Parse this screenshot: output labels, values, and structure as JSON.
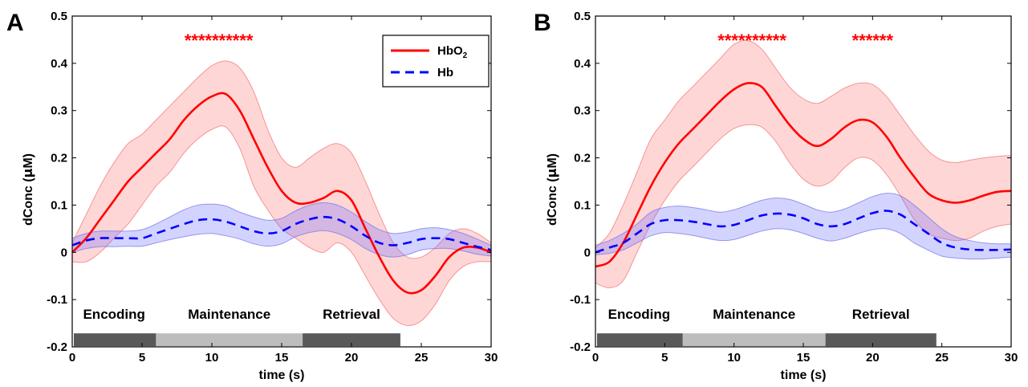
{
  "colors": {
    "hbo2": "#ff0000",
    "hbo2_band": "rgba(255,120,120,0.30)",
    "hbo2_band_edge": "rgba(240,120,120,0.75)",
    "hb": "#0000ff",
    "hb_band": "rgba(110,110,255,0.30)",
    "hb_band_edge": "rgba(120,120,230,0.75)",
    "phase_dark": "#595959",
    "phase_light": "#bdbdbd",
    "stars": "#ff0000"
  },
  "chart_data": [
    {
      "type": "line",
      "panel_label": "A",
      "xlabel": "time (s)",
      "ylabel_prefix": "dConc (",
      "ylabel_mu": "μ",
      "ylabel_suffix": "M)",
      "xlim": [
        0,
        30
      ],
      "ylim": [
        -0.2,
        0.5
      ],
      "xticks": [
        0,
        5,
        10,
        15,
        20,
        25,
        30
      ],
      "yticks": [
        -0.2,
        -0.1,
        0,
        0.1,
        0.2,
        0.3,
        0.4,
        0.5
      ],
      "ytick_labels": [
        "-0.2",
        "-0.1",
        "0",
        "0.1",
        "0.2",
        "0.3",
        "0.4",
        "0.5"
      ],
      "grid": false,
      "legend": {
        "placement": "top-right",
        "entries": [
          {
            "label": "HbO",
            "subscript": "2",
            "style": "solid",
            "series": "HbO2"
          },
          {
            "label": "Hb",
            "subscript": "",
            "style": "dashed",
            "series": "Hb"
          }
        ]
      },
      "significance": [
        {
          "text": "**********",
          "x_center": 10.5
        }
      ],
      "phases": [
        {
          "label": "Encoding",
          "x_start": 0,
          "x_end": 6,
          "shade": "dark"
        },
        {
          "label": "Maintenance",
          "x_start": 6,
          "x_end": 16.5,
          "shade": "light"
        },
        {
          "label": "Retrieval",
          "x_start": 16.5,
          "x_end": 23.5,
          "shade": "dark"
        }
      ],
      "phase_bar_y": -0.185,
      "phase_label_y": -0.13,
      "series": [
        {
          "name": "HbO2",
          "x": [
            0,
            1,
            2,
            3,
            4,
            5,
            6,
            7,
            8,
            9,
            10,
            11,
            12,
            13,
            14,
            15,
            16,
            17,
            18,
            19,
            20,
            21,
            22,
            23,
            24,
            25,
            26,
            27,
            28,
            29,
            30
          ],
          "mean": [
            0.0,
            0.03,
            0.07,
            0.11,
            0.15,
            0.18,
            0.21,
            0.24,
            0.28,
            0.31,
            0.33,
            0.335,
            0.3,
            0.24,
            0.18,
            0.13,
            0.105,
            0.105,
            0.115,
            0.13,
            0.11,
            0.05,
            -0.01,
            -0.06,
            -0.085,
            -0.08,
            -0.05,
            -0.01,
            0.01,
            0.01,
            0.0
          ],
          "upper": [
            0.02,
            0.08,
            0.14,
            0.19,
            0.23,
            0.25,
            0.28,
            0.31,
            0.34,
            0.37,
            0.395,
            0.405,
            0.39,
            0.34,
            0.26,
            0.2,
            0.18,
            0.2,
            0.22,
            0.23,
            0.21,
            0.15,
            0.08,
            0.02,
            -0.01,
            -0.01,
            0.01,
            0.04,
            0.05,
            0.04,
            0.02
          ],
          "lower": [
            -0.02,
            -0.02,
            0.0,
            0.03,
            0.06,
            0.1,
            0.14,
            0.17,
            0.21,
            0.24,
            0.26,
            0.265,
            0.22,
            0.14,
            0.09,
            0.05,
            0.03,
            0.01,
            0.0,
            0.02,
            0.0,
            -0.05,
            -0.1,
            -0.14,
            -0.155,
            -0.145,
            -0.11,
            -0.06,
            -0.03,
            -0.02,
            -0.02
          ]
        },
        {
          "name": "Hb",
          "x": [
            0,
            1,
            2,
            3,
            4,
            5,
            6,
            7,
            8,
            9,
            10,
            11,
            12,
            13,
            14,
            15,
            16,
            17,
            18,
            19,
            20,
            21,
            22,
            23,
            24,
            25,
            26,
            27,
            28,
            29,
            30
          ],
          "mean": [
            0.015,
            0.025,
            0.03,
            0.03,
            0.03,
            0.03,
            0.04,
            0.05,
            0.06,
            0.068,
            0.07,
            0.065,
            0.055,
            0.045,
            0.04,
            0.045,
            0.06,
            0.07,
            0.075,
            0.07,
            0.055,
            0.035,
            0.02,
            0.015,
            0.02,
            0.028,
            0.03,
            0.028,
            0.02,
            0.012,
            0.005
          ],
          "upper": [
            0.03,
            0.04,
            0.045,
            0.045,
            0.045,
            0.048,
            0.06,
            0.075,
            0.09,
            0.1,
            0.102,
            0.098,
            0.085,
            0.075,
            0.068,
            0.072,
            0.088,
            0.1,
            0.105,
            0.1,
            0.085,
            0.065,
            0.048,
            0.04,
            0.043,
            0.05,
            0.052,
            0.048,
            0.04,
            0.028,
            0.015
          ],
          "lower": [
            0.0,
            0.008,
            0.012,
            0.012,
            0.013,
            0.013,
            0.02,
            0.027,
            0.033,
            0.038,
            0.04,
            0.035,
            0.028,
            0.018,
            0.013,
            0.018,
            0.033,
            0.042,
            0.046,
            0.04,
            0.027,
            0.008,
            -0.005,
            -0.01,
            -0.005,
            0.005,
            0.008,
            0.008,
            0.003,
            -0.004,
            -0.008
          ]
        }
      ]
    },
    {
      "type": "line",
      "panel_label": "B",
      "xlabel": "time (s)",
      "ylabel_prefix": "dConc (",
      "ylabel_mu": "μ",
      "ylabel_suffix": "M)",
      "xlim": [
        0,
        30
      ],
      "ylim": [
        -0.2,
        0.5
      ],
      "xticks": [
        0,
        5,
        10,
        15,
        20,
        25,
        30
      ],
      "yticks": [
        -0.2,
        -0.1,
        0,
        0.1,
        0.2,
        0.3,
        0.4,
        0.5
      ],
      "ytick_labels": [
        "-0.2",
        "-0.1",
        "0",
        "0.1",
        "0.2",
        "0.3",
        "0.4",
        "0.5"
      ],
      "grid": false,
      "significance": [
        {
          "text": "**********",
          "x_center": 11.3
        },
        {
          "text": "******",
          "x_center": 20.0
        }
      ],
      "phases": [
        {
          "label": "Encoding",
          "x_start": 0,
          "x_end": 6.3,
          "shade": "dark"
        },
        {
          "label": "Maintenance",
          "x_start": 6.3,
          "x_end": 16.6,
          "shade": "light"
        },
        {
          "label": "Retrieval",
          "x_start": 16.6,
          "x_end": 24.6,
          "shade": "dark"
        }
      ],
      "phase_bar_y": -0.185,
      "phase_label_y": -0.13,
      "series": [
        {
          "name": "HbO2",
          "x": [
            0,
            1,
            2,
            3,
            4,
            5,
            6,
            7,
            8,
            9,
            10,
            11,
            12,
            13,
            14,
            15,
            16,
            17,
            18,
            19,
            20,
            21,
            22,
            23,
            24,
            25,
            26,
            27,
            28,
            29,
            30
          ],
          "mean": [
            -0.03,
            -0.02,
            0.02,
            0.08,
            0.14,
            0.19,
            0.23,
            0.26,
            0.29,
            0.32,
            0.345,
            0.358,
            0.35,
            0.31,
            0.27,
            0.24,
            0.225,
            0.24,
            0.265,
            0.28,
            0.275,
            0.245,
            0.2,
            0.16,
            0.125,
            0.11,
            0.105,
            0.11,
            0.12,
            0.128,
            0.13
          ],
          "upper": [
            0.01,
            0.04,
            0.1,
            0.17,
            0.24,
            0.28,
            0.32,
            0.35,
            0.38,
            0.41,
            0.44,
            0.448,
            0.43,
            0.39,
            0.35,
            0.325,
            0.315,
            0.33,
            0.348,
            0.358,
            0.355,
            0.33,
            0.29,
            0.25,
            0.215,
            0.195,
            0.19,
            0.195,
            0.2,
            0.203,
            0.205
          ],
          "lower": [
            -0.065,
            -0.075,
            -0.06,
            0.0,
            0.06,
            0.11,
            0.15,
            0.18,
            0.21,
            0.24,
            0.262,
            0.27,
            0.265,
            0.235,
            0.19,
            0.155,
            0.14,
            0.15,
            0.18,
            0.2,
            0.195,
            0.165,
            0.12,
            0.07,
            0.04,
            0.03,
            0.025,
            0.03,
            0.045,
            0.055,
            0.06
          ]
        },
        {
          "name": "Hb",
          "x": [
            0,
            1,
            2,
            3,
            4,
            5,
            6,
            7,
            8,
            9,
            10,
            11,
            12,
            13,
            14,
            15,
            16,
            17,
            18,
            19,
            20,
            21,
            22,
            23,
            24,
            25,
            26,
            27,
            28,
            29,
            30
          ],
          "mean": [
            0.0,
            0.01,
            0.02,
            0.04,
            0.06,
            0.068,
            0.068,
            0.065,
            0.06,
            0.055,
            0.058,
            0.068,
            0.078,
            0.082,
            0.08,
            0.072,
            0.06,
            0.055,
            0.06,
            0.072,
            0.083,
            0.088,
            0.08,
            0.06,
            0.04,
            0.02,
            0.01,
            0.006,
            0.005,
            0.005,
            0.006
          ],
          "upper": [
            0.015,
            0.025,
            0.04,
            0.06,
            0.085,
            0.095,
            0.098,
            0.095,
            0.09,
            0.085,
            0.09,
            0.1,
            0.11,
            0.115,
            0.112,
            0.102,
            0.09,
            0.085,
            0.092,
            0.105,
            0.118,
            0.125,
            0.12,
            0.1,
            0.075,
            0.05,
            0.033,
            0.025,
            0.02,
            0.018,
            0.018
          ],
          "lower": [
            -0.005,
            -0.002,
            0.005,
            0.02,
            0.035,
            0.042,
            0.04,
            0.036,
            0.03,
            0.025,
            0.027,
            0.036,
            0.045,
            0.05,
            0.048,
            0.04,
            0.03,
            0.024,
            0.03,
            0.04,
            0.048,
            0.05,
            0.04,
            0.02,
            0.005,
            -0.008,
            -0.012,
            -0.014,
            -0.014,
            -0.012,
            -0.01
          ]
        }
      ]
    }
  ]
}
